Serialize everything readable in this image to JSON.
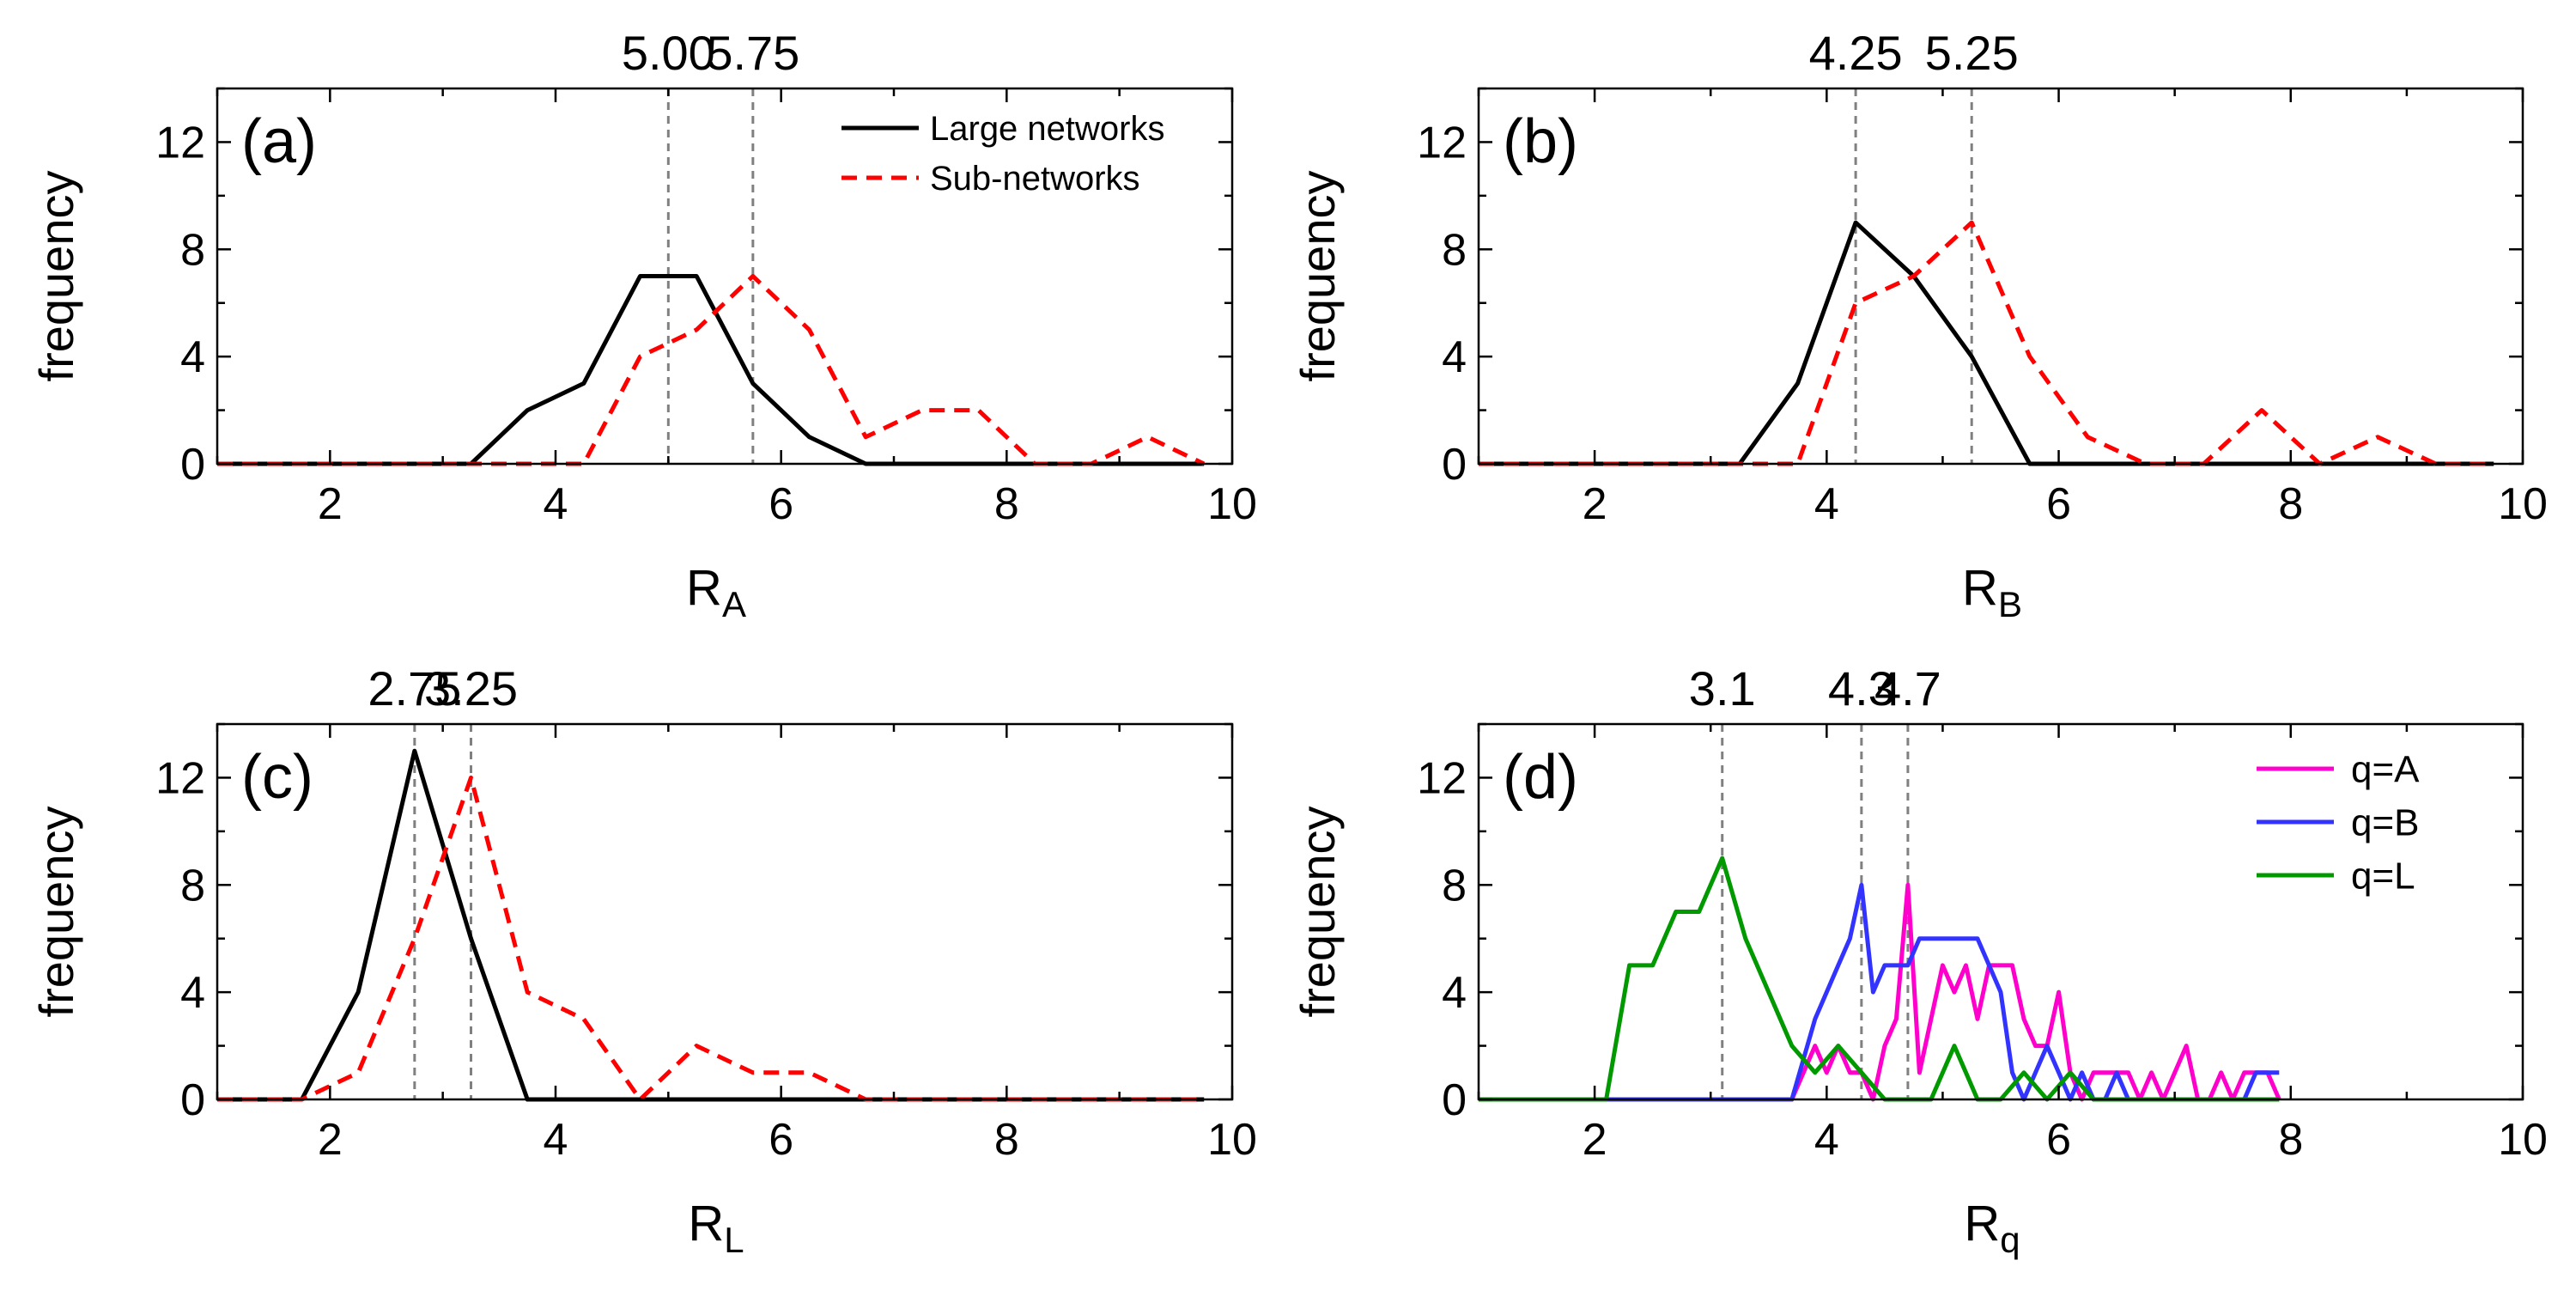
{
  "figure": {
    "y_axis_label": "frequency"
  },
  "chart_data": [
    {
      "type": "line",
      "panel_label": "(a)",
      "xlabel_main": "R",
      "xlabel_sub": "A",
      "ylabel": "frequency",
      "xlim": [
        1,
        10
      ],
      "ylim": [
        0,
        14
      ],
      "xticks": [
        2,
        4,
        6,
        8,
        10
      ],
      "yticks": [
        0,
        4,
        8,
        12
      ],
      "reference_lines": [
        {
          "x": 5.0,
          "label": "5.00"
        },
        {
          "x": 5.75,
          "label": "5.75"
        }
      ],
      "legend": {
        "position": "top-right"
      },
      "series": [
        {
          "name": "Large networks",
          "color": "#000000",
          "dash": "solid",
          "x": [
            1.0,
            1.25,
            1.75,
            2.25,
            2.75,
            3.25,
            3.75,
            4.25,
            4.75,
            5.25,
            5.75,
            6.25,
            6.75,
            7.25,
            7.75,
            8.25,
            8.75,
            9.25,
            9.75
          ],
          "y": [
            0,
            0,
            0,
            0,
            0,
            0,
            2,
            3,
            7,
            7,
            3,
            1,
            0,
            0,
            0,
            0,
            0,
            0,
            0
          ]
        },
        {
          "name": "Sub-networks",
          "color": "#ff0000",
          "dash": "dashed",
          "x": [
            1.0,
            1.25,
            1.75,
            2.25,
            2.75,
            3.25,
            3.75,
            4.25,
            4.75,
            5.25,
            5.75,
            6.25,
            6.75,
            7.25,
            7.75,
            8.25,
            8.75,
            9.25,
            9.75
          ],
          "y": [
            0,
            0,
            0,
            0,
            0,
            0,
            0,
            0,
            4,
            5,
            7,
            5,
            1,
            2,
            2,
            0,
            0,
            1,
            0
          ]
        }
      ]
    },
    {
      "type": "line",
      "panel_label": "(b)",
      "xlabel_main": "R",
      "xlabel_sub": "B",
      "ylabel": "frequency",
      "xlim": [
        1,
        10
      ],
      "ylim": [
        0,
        14
      ],
      "xticks": [
        2,
        4,
        6,
        8,
        10
      ],
      "yticks": [
        0,
        4,
        8,
        12
      ],
      "reference_lines": [
        {
          "x": 4.25,
          "label": "4.25"
        },
        {
          "x": 5.25,
          "label": "5.25"
        }
      ],
      "series": [
        {
          "name": "Large networks",
          "color": "#000000",
          "dash": "solid",
          "x": [
            1.0,
            1.25,
            1.75,
            2.25,
            2.75,
            3.25,
            3.75,
            4.25,
            4.75,
            5.25,
            5.75,
            6.25,
            6.75,
            7.25,
            7.75,
            8.25,
            8.75,
            9.25,
            9.75
          ],
          "y": [
            0,
            0,
            0,
            0,
            0,
            0,
            3,
            9,
            7,
            4,
            0,
            0,
            0,
            0,
            0,
            0,
            0,
            0,
            0
          ]
        },
        {
          "name": "Sub-networks",
          "color": "#ff0000",
          "dash": "dashed",
          "x": [
            1.0,
            1.25,
            1.75,
            2.25,
            2.75,
            3.25,
            3.75,
            4.25,
            4.75,
            5.25,
            5.75,
            6.25,
            6.75,
            7.25,
            7.75,
            8.25,
            8.75,
            9.25,
            9.75
          ],
          "y": [
            0,
            0,
            0,
            0,
            0,
            0,
            0,
            6,
            7,
            9,
            4,
            1,
            0,
            0,
            2,
            0,
            1,
            0,
            0
          ]
        }
      ]
    },
    {
      "type": "line",
      "panel_label": "(c)",
      "xlabel_main": "R",
      "xlabel_sub": "L",
      "ylabel": "frequency",
      "xlim": [
        1,
        10
      ],
      "ylim": [
        0,
        14
      ],
      "xticks": [
        2,
        4,
        6,
        8,
        10
      ],
      "yticks": [
        0,
        4,
        8,
        12
      ],
      "reference_lines": [
        {
          "x": 2.75,
          "label": "2.75"
        },
        {
          "x": 3.25,
          "label": "3.25"
        }
      ],
      "series": [
        {
          "name": "Large networks",
          "color": "#000000",
          "dash": "solid",
          "x": [
            1.0,
            1.25,
            1.75,
            2.25,
            2.75,
            3.25,
            3.75,
            4.25,
            4.75,
            5.25,
            5.75,
            6.25,
            6.75,
            7.25,
            7.75,
            8.25,
            8.75,
            9.25,
            9.75
          ],
          "y": [
            0,
            0,
            0,
            4,
            13,
            6,
            0,
            0,
            0,
            0,
            0,
            0,
            0,
            0,
            0,
            0,
            0,
            0,
            0
          ]
        },
        {
          "name": "Sub-networks",
          "color": "#ff0000",
          "dash": "dashed",
          "x": [
            1.0,
            1.25,
            1.75,
            2.25,
            2.75,
            3.25,
            3.75,
            4.25,
            4.75,
            5.25,
            5.75,
            6.25,
            6.75,
            7.25,
            7.75,
            8.25,
            8.75,
            9.25,
            9.75
          ],
          "y": [
            0,
            0,
            0,
            1,
            6,
            12,
            4,
            3,
            0,
            2,
            1,
            1,
            0,
            0,
            0,
            0,
            0,
            0,
            0
          ]
        }
      ]
    },
    {
      "type": "line",
      "panel_label": "(d)",
      "xlabel_main": "R",
      "xlabel_sub": "q",
      "ylabel": "frequency",
      "xlim": [
        1,
        10
      ],
      "ylim": [
        0,
        14
      ],
      "xticks": [
        2,
        4,
        6,
        8,
        10
      ],
      "yticks": [
        0,
        4,
        8,
        12
      ],
      "reference_lines": [
        {
          "x": 3.1,
          "label": "3.1"
        },
        {
          "x": 4.3,
          "label": "4.3"
        },
        {
          "x": 4.7,
          "label": "4.7"
        }
      ],
      "legend": {
        "position": "top-right"
      },
      "series": [
        {
          "name": "q=A",
          "color": "#ff00cc",
          "dash": "solid",
          "x": [
            1.0,
            2.1,
            3.7,
            3.9,
            4.0,
            4.1,
            4.2,
            4.3,
            4.4,
            4.5,
            4.6,
            4.7,
            4.8,
            4.9,
            5.0,
            5.1,
            5.2,
            5.3,
            5.4,
            5.5,
            5.6,
            5.7,
            5.8,
            5.9,
            6.0,
            6.1,
            6.2,
            6.3,
            6.4,
            6.5,
            6.6,
            6.7,
            6.8,
            6.9,
            7.0,
            7.1,
            7.2,
            7.3,
            7.4,
            7.5,
            7.6,
            7.7,
            7.8,
            7.9
          ],
          "y": [
            0,
            0,
            0,
            2,
            1,
            2,
            1,
            1,
            0,
            2,
            3,
            8,
            1,
            3,
            5,
            4,
            5,
            3,
            5,
            5,
            5,
            3,
            2,
            2,
            4,
            1,
            0,
            1,
            1,
            1,
            1,
            0,
            1,
            0,
            1,
            2,
            0,
            0,
            1,
            0,
            1,
            1,
            1,
            0
          ]
        },
        {
          "name": "q=B",
          "color": "#3333ff",
          "dash": "solid",
          "x": [
            1.0,
            2.1,
            3.7,
            3.9,
            4.0,
            4.1,
            4.2,
            4.3,
            4.4,
            4.5,
            4.6,
            4.7,
            4.8,
            4.9,
            5.0,
            5.1,
            5.2,
            5.3,
            5.4,
            5.5,
            5.6,
            5.7,
            5.8,
            5.9,
            6.0,
            6.1,
            6.2,
            6.3,
            6.4,
            6.5,
            6.6,
            6.7,
            6.8,
            6.9,
            7.0,
            7.1,
            7.2,
            7.3,
            7.4,
            7.5,
            7.6,
            7.7,
            7.8,
            7.9
          ],
          "y": [
            0,
            0,
            0,
            3,
            4,
            5,
            6,
            8,
            4,
            5,
            5,
            5,
            6,
            6,
            6,
            6,
            6,
            6,
            5,
            4,
            1,
            0,
            1,
            2,
            1,
            0,
            1,
            0,
            0,
            1,
            0,
            0,
            0,
            0,
            0,
            0,
            0,
            0,
            0,
            0,
            0,
            1,
            1,
            1
          ]
        },
        {
          "name": "q=L",
          "color": "#009900",
          "dash": "solid",
          "x": [
            1.0,
            2.1,
            2.3,
            2.5,
            2.7,
            2.9,
            3.1,
            3.3,
            3.5,
            3.7,
            3.9,
            4.1,
            4.3,
            4.5,
            4.7,
            4.9,
            5.1,
            5.3,
            5.5,
            5.7,
            5.9,
            6.1,
            6.3,
            6.5,
            6.7,
            6.9,
            7.1,
            7.3,
            7.5,
            7.7,
            7.9
          ],
          "y": [
            0,
            0,
            5,
            5,
            7,
            7,
            9,
            6,
            4,
            2,
            1,
            2,
            1,
            0,
            0,
            0,
            2,
            0,
            0,
            1,
            0,
            1,
            0,
            0,
            0,
            0,
            0,
            0,
            0,
            0,
            0
          ]
        }
      ]
    }
  ]
}
